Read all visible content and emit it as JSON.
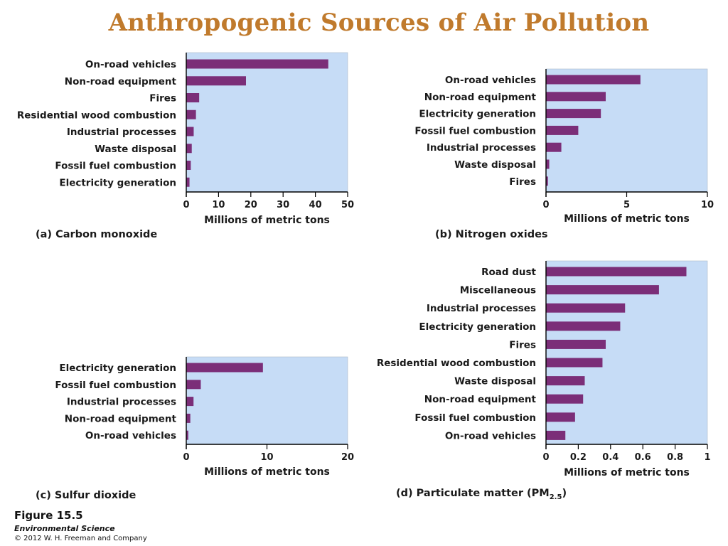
{
  "title": "Anthropogenic  Sources of Air Pollution",
  "colors": {
    "bar": "#7b2e78",
    "plot_bg": "#c6dcf6",
    "title": "#c07a2c"
  },
  "chart_data": [
    {
      "type": "bar",
      "orientation": "horizontal",
      "caption": "(a) Carbon monoxide",
      "xlabel": "Millions of metric tons",
      "xlim": [
        0,
        50
      ],
      "xticks": [
        0,
        10,
        20,
        30,
        40,
        50
      ],
      "categories": [
        "On-road vehicles",
        "Non-road equipment",
        "Fires",
        "Residential wood combustion",
        "Industrial processes",
        "Waste disposal",
        "Fossil fuel combustion",
        "Electricity generation"
      ],
      "values": [
        44,
        18.5,
        4,
        3,
        2.3,
        1.7,
        1.4,
        1.0
      ]
    },
    {
      "type": "bar",
      "orientation": "horizontal",
      "caption": "(b) Nitrogen oxides",
      "xlabel": "Millions of metric tons",
      "xlim": [
        0,
        10
      ],
      "xticks": [
        0,
        5,
        10
      ],
      "categories": [
        "On-road vehicles",
        "Non-road equipment",
        "Electricity generation",
        "Fossil fuel combustion",
        "Industrial processes",
        "Waste disposal",
        "Fires"
      ],
      "values": [
        5.85,
        3.7,
        3.4,
        2.0,
        0.95,
        0.2,
        0.12
      ]
    },
    {
      "type": "bar",
      "orientation": "horizontal",
      "caption": "(c) Sulfur dioxide",
      "xlabel": "Millions of metric tons",
      "xlim": [
        0,
        20
      ],
      "xticks": [
        0,
        10,
        20
      ],
      "categories": [
        "Electricity generation",
        "Fossil fuel combustion",
        "Industrial processes",
        "Non-road equipment",
        "On-road vehicles"
      ],
      "values": [
        9.5,
        1.8,
        0.9,
        0.5,
        0.25
      ]
    },
    {
      "type": "bar",
      "orientation": "horizontal",
      "caption": "(d) Particulate matter (PM",
      "caption_sub": "2.5",
      "caption_end": ")",
      "xlabel": "Millions of metric tons",
      "xlim": [
        0,
        1
      ],
      "xticks": [
        "0",
        "0.2",
        "0.4",
        "0.6",
        "0.8",
        "1"
      ],
      "categories": [
        "Road dust",
        "Miscellaneous",
        "Industrial processes",
        "Electricity generation",
        "Fires",
        "Residential wood combustion",
        "Waste disposal",
        "Non-road equipment",
        "Fossil fuel combustion",
        "On-road vehicles"
      ],
      "values": [
        0.87,
        0.7,
        0.49,
        0.46,
        0.37,
        0.35,
        0.24,
        0.23,
        0.18,
        0.12
      ]
    }
  ],
  "footer": {
    "figure": "Figure 15.5",
    "book": "Environmental Science",
    "copyright": "© 2012 W. H. Freeman and Company"
  }
}
